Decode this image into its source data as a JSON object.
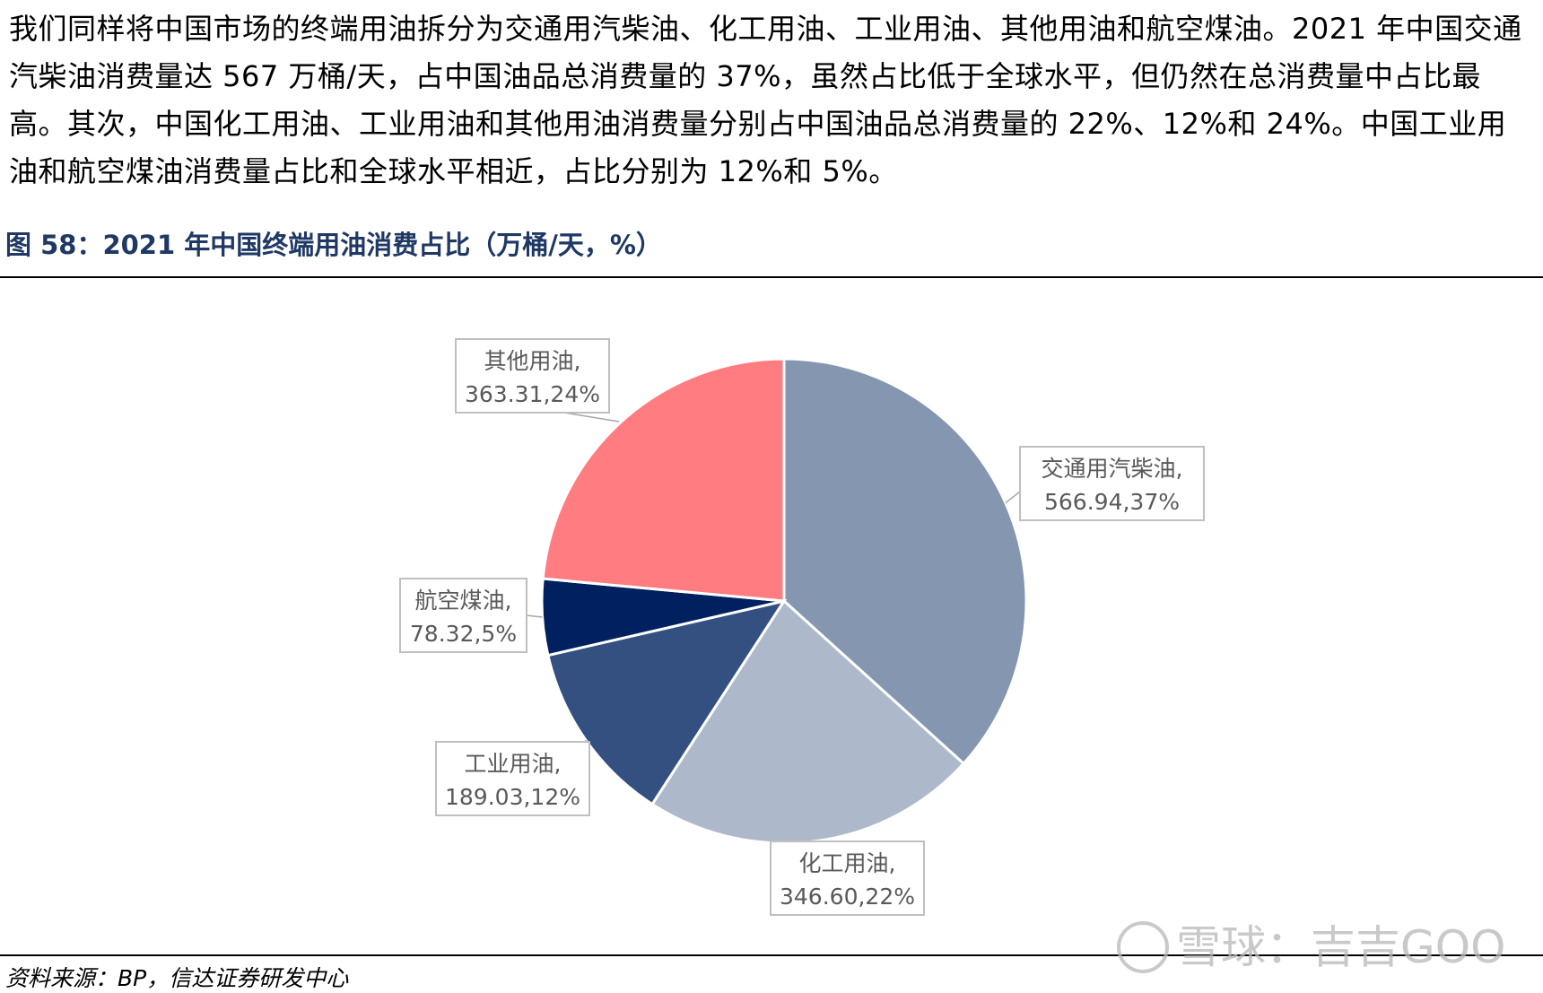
{
  "paragraph": "我们同样将中国市场的终端用油拆分为交通用汽柴油、化工用油、工业用油、其他用油和航空煤油。2021 年中国交通汽柴油消费量达 567 万桶/天，占中国油品总消费量的 37%，虽然占比低于全球水平，但仍然在总消费量中占比最高。其次，中国化工用油、工业用油和其他用油消费量分别占中国油品总消费量的 22%、12%和 24%。中国工业用油和航空煤油消费量占比和全球水平相近，占比分别为 12%和 5%。",
  "figure_title": "图 58：2021 年中国终端用油消费占比（万桶/天，%）",
  "source": "资料来源：BP，信达证券研发中心",
  "watermark": "雪球：吉吉GOO",
  "chart_data": {
    "type": "pie",
    "title": "",
    "slices": [
      {
        "name": "交通用汽柴油",
        "value": 566.94,
        "value_label": "566.94",
        "percent_label": "37%",
        "color": "#8496b0"
      },
      {
        "name": "化工用油",
        "value": 346.6,
        "value_label": "346.60",
        "percent_label": "22%",
        "color": "#adb9ca"
      },
      {
        "name": "工业用油",
        "value": 189.03,
        "value_label": "189.03",
        "percent_label": "12%",
        "color": "#335080"
      },
      {
        "name": "航空煤油",
        "value": 78.32,
        "value_label": "78.32",
        "percent_label": "5%",
        "color": "#002060"
      },
      {
        "name": "其他用油",
        "value": 363.31,
        "value_label": "363.31",
        "percent_label": "24%",
        "color": "#ff7c80"
      }
    ],
    "legend": "none",
    "start": "12 o'clock",
    "direction": "clockwise"
  }
}
